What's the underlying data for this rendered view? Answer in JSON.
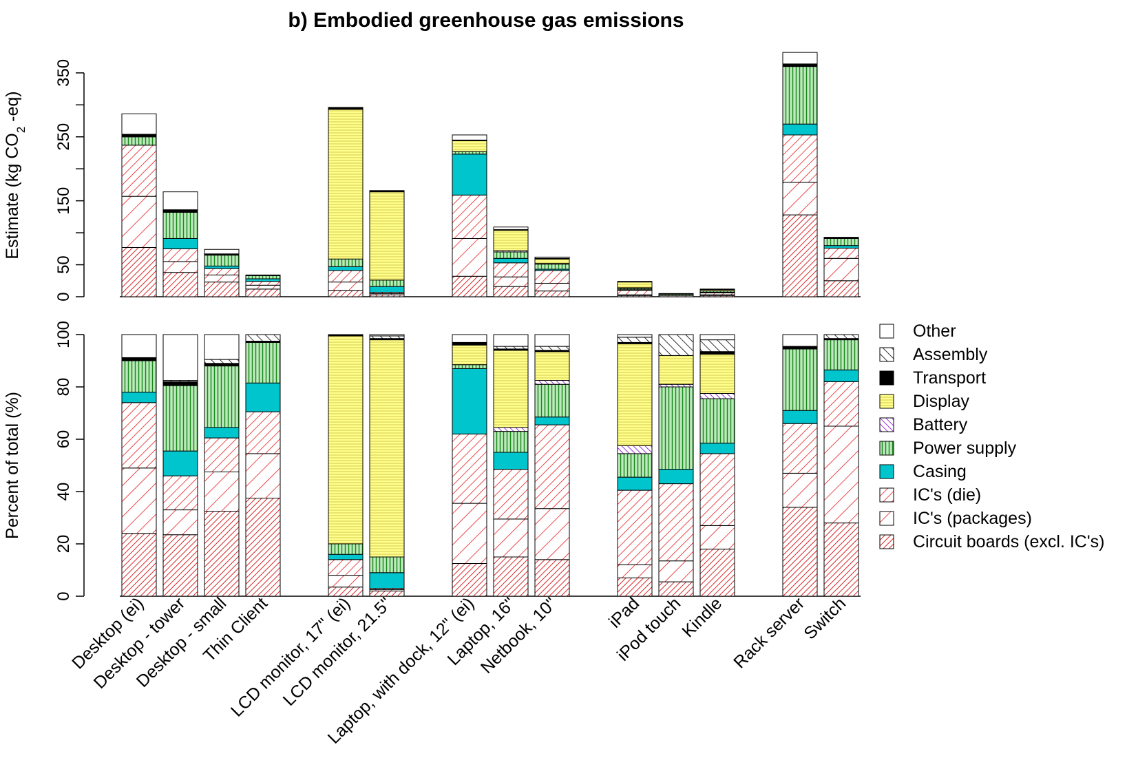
{
  "chart_data": {
    "type": "bar",
    "title": "b) Embodied greenhouse gas emissions",
    "xlabel": "",
    "groups": [
      [
        0,
        1,
        2,
        3
      ],
      [
        4,
        5
      ],
      [
        6,
        7,
        8
      ],
      [
        9,
        10,
        11
      ],
      [
        12,
        13
      ]
    ],
    "categories": [
      "Desktop (ei)",
      "Desktop - tower",
      "Desktop - small",
      "Thin Client",
      "LCD monitor, 17\" (ei)",
      "LCD monitor, 21.5\"",
      "Laptop, with dock, 12\" (ei)",
      "Laptop, 16\"",
      "Netbook, 10\"",
      "iPad",
      "iPod touch",
      "Kindle",
      "Rack server",
      "Switch"
    ],
    "series": [
      {
        "name": "Circuit boards (excl. IC's)",
        "color": "#d62728",
        "pattern": "dense-diag"
      },
      {
        "name": "IC's (packages)",
        "color": "#e31a1c",
        "pattern": "sparse-diag"
      },
      {
        "name": "IC's (die)",
        "color": "#e31a1c",
        "pattern": "medium-diag"
      },
      {
        "name": "Casing",
        "color": "#00c5cd",
        "pattern": "solid"
      },
      {
        "name": "Power supply",
        "color": "#1a8a1a",
        "pattern": "vertical"
      },
      {
        "name": "Battery",
        "color": "#9b30d8",
        "pattern": "anti-diag"
      },
      {
        "name": "Display",
        "color": "#ffff99",
        "pattern": "horizontal"
      },
      {
        "name": "Transport",
        "color": "#000000",
        "pattern": "solid-black"
      },
      {
        "name": "Assembly",
        "color": "#333333",
        "pattern": "anti-diag-dark"
      },
      {
        "name": "Other",
        "color": "#ffffff",
        "pattern": "white"
      }
    ],
    "legend_order": [
      "Other",
      "Assembly",
      "Transport",
      "Display",
      "Battery",
      "Power supply",
      "Casing",
      "IC's (die)",
      "IC's (packages)",
      "Circuit boards (excl. IC's)"
    ],
    "panels": [
      {
        "id": "absolute",
        "ylabel_pre": "Estimate (kg CO",
        "ylabel_sub": "2",
        "ylabel_post": " -eq)",
        "ylim": [
          0,
          380
        ],
        "yticks": [
          0,
          50,
          100,
          150,
          200,
          250,
          300,
          350
        ],
        "ytick_labels": [
          "0",
          "50",
          "",
          "150",
          "",
          "250",
          "",
          "350"
        ],
        "values": [
          [
            77,
            80,
            80,
            0,
            13,
            0,
            0,
            4,
            0,
            32
          ],
          [
            38,
            17,
            20,
            16,
            41,
            0,
            0,
            4,
            0,
            28
          ],
          [
            23,
            11,
            10,
            4,
            17,
            0,
            0,
            2,
            0,
            7
          ],
          [
            12,
            6,
            6,
            4,
            5,
            0,
            0,
            1,
            0,
            0
          ],
          [
            10,
            13,
            18,
            6,
            12,
            0,
            234,
            3,
            0,
            0
          ],
          [
            3,
            2,
            2,
            9,
            10,
            0,
            138,
            2,
            0,
            0
          ],
          [
            32,
            59,
            68,
            64,
            4,
            0,
            17,
            1,
            0,
            8
          ],
          [
            16,
            15,
            22,
            7,
            10,
            2,
            32,
            1,
            0,
            4
          ],
          [
            9,
            12,
            20,
            2,
            8,
            1,
            7,
            1,
            0,
            2
          ],
          [
            2,
            1,
            7,
            1,
            2,
            1,
            9,
            0,
            1,
            0
          ],
          [
            0,
            0,
            2,
            0,
            2,
            0,
            1,
            0,
            0,
            0
          ],
          [
            2,
            1,
            3,
            1,
            2,
            0,
            2,
            0,
            1,
            0
          ],
          [
            128,
            51,
            74,
            17,
            90,
            0,
            0,
            4,
            0,
            18
          ],
          [
            25,
            35,
            16,
            4,
            11,
            0,
            0,
            1,
            1,
            0
          ]
        ]
      },
      {
        "id": "percent",
        "ylabel_pre": "Percent of total (%)",
        "ylabel_sub": "",
        "ylabel_post": "",
        "ylim": [
          0,
          100
        ],
        "yticks": [
          0,
          20,
          40,
          60,
          80,
          100
        ],
        "ytick_labels": [
          "0",
          "20",
          "40",
          "60",
          "80",
          "100"
        ],
        "values": [
          [
            24,
            25,
            25,
            4,
            12,
            0,
            0,
            1.2,
            0,
            8.8
          ],
          [
            23.5,
            9.5,
            13,
            9.5,
            25,
            0,
            0,
            1.5,
            0.5,
            17.5
          ],
          [
            32.5,
            15,
            13,
            4,
            23.5,
            0,
            0,
            1,
            1.5,
            9.5
          ],
          [
            37.5,
            17,
            16,
            11,
            15.5,
            0,
            0,
            0.5,
            2.5,
            0
          ],
          [
            3.5,
            4.5,
            6,
            2,
            4,
            0,
            79.5,
            0.5,
            0,
            0
          ],
          [
            2,
            0.5,
            0.5,
            6,
            6,
            0,
            83,
            0.5,
            1,
            0.5
          ],
          [
            12.5,
            23,
            26.5,
            25,
            1.5,
            0,
            7.5,
            1,
            0,
            3
          ],
          [
            15,
            14.5,
            19,
            6.5,
            8,
            1.5,
            29.5,
            0.5,
            1,
            4.5
          ],
          [
            14,
            19.5,
            32,
            3,
            12.5,
            1.5,
            11,
            0.5,
            1.5,
            4.5
          ],
          [
            7,
            5,
            28.5,
            5,
            9,
            3,
            39,
            0.5,
            2,
            1
          ],
          [
            5.5,
            8,
            29.5,
            5.5,
            31.5,
            1,
            11,
            0,
            8,
            0
          ],
          [
            18,
            9,
            27.5,
            4,
            17,
            2,
            15,
            1,
            4.5,
            2
          ],
          [
            34,
            13,
            19,
            5,
            23.5,
            0,
            0,
            1,
            0,
            4.5
          ],
          [
            28,
            37,
            17,
            4.5,
            11.5,
            0,
            0,
            0.5,
            1.5,
            0
          ]
        ]
      }
    ]
  }
}
